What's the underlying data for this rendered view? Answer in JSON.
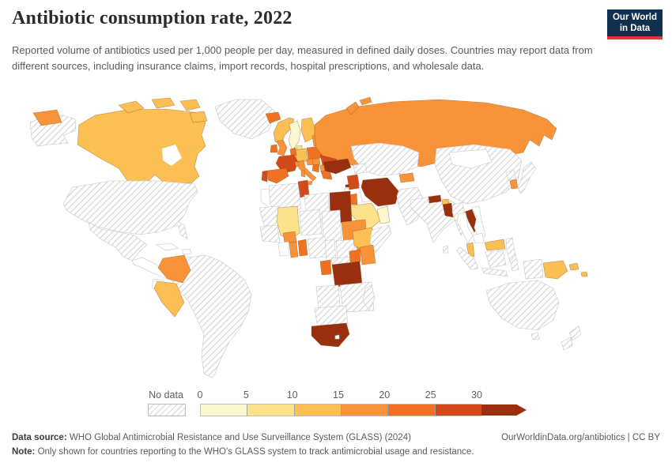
{
  "header": {
    "title": "Antibiotic consumption rate, 2022",
    "subtitle": "Reported volume of antibiotics used per 1,000 people per day, measured in defined daily doses. Countries may report data from different sources, including insurance claims, import records, hospital prescriptions, and wholesale data.",
    "logo": {
      "line1": "Our World",
      "line2": "in Data",
      "bg": "#10304e",
      "accent": "#dc382d"
    }
  },
  "legend": {
    "no_data_label": "No data",
    "ticks": [
      "0",
      "5",
      "10",
      "15",
      "20",
      "25",
      "30"
    ]
  },
  "footer": {
    "source_label": "Data source:",
    "source_text": " WHO Global Antimicrobial Resistance and Use Surveillance System (GLASS) (2024)",
    "attribution": "OurWorldinData.org/antibiotics | CC BY",
    "note_label": "Note:",
    "note_text": " Only shown for countries reporting to the WHO's GLASS system to track antimicrobial usage and resistance."
  },
  "map": {
    "bin_colors": [
      "#fdf7d1",
      "#fce28a",
      "#fcbf53",
      "#f8933a",
      "#ee7124",
      "#d2491b",
      "#9a2f10"
    ],
    "hatch_line_color": "#d7d7d7",
    "countries": [
      {
        "id": "alaska",
        "bin": "nodata"
      },
      {
        "id": "usa",
        "bin": "nodata"
      },
      {
        "id": "canada",
        "bin": 2
      },
      {
        "id": "hudson-bay",
        "bin": "sea"
      },
      {
        "id": "arctic-1",
        "bin": 2
      },
      {
        "id": "arctic-2",
        "bin": 2
      },
      {
        "id": "arctic-3",
        "bin": 2
      },
      {
        "id": "arctic-4",
        "bin": 2
      },
      {
        "id": "greenland",
        "bin": "nodata"
      },
      {
        "id": "iceland",
        "bin": 4
      },
      {
        "id": "mexico",
        "bin": "nodata"
      },
      {
        "id": "central-america",
        "bin": "white"
      },
      {
        "id": "cuba",
        "bin": "white"
      },
      {
        "id": "hispaniola",
        "bin": "white"
      },
      {
        "id": "south-america",
        "bin": "nodata"
      },
      {
        "id": "colombia",
        "bin": 3
      },
      {
        "id": "peru",
        "bin": 2
      },
      {
        "id": "ecuador",
        "bin": "white"
      },
      {
        "id": "norway",
        "bin": 2
      },
      {
        "id": "sweden",
        "bin": 0
      },
      {
        "id": "finland",
        "bin": 2
      },
      {
        "id": "denmark",
        "bin": 1
      },
      {
        "id": "uk",
        "bin": 3
      },
      {
        "id": "ireland",
        "bin": 4
      },
      {
        "id": "baltics",
        "bin": 3
      },
      {
        "id": "belarus",
        "bin": "nodata"
      },
      {
        "id": "poland",
        "bin": 4
      },
      {
        "id": "germany",
        "bin": 2
      },
      {
        "id": "benelux",
        "bin": 4
      },
      {
        "id": "france",
        "bin": 5
      },
      {
        "id": "spain",
        "bin": 4
      },
      {
        "id": "portugal",
        "bin": 5
      },
      {
        "id": "switzerland",
        "bin": 3
      },
      {
        "id": "czech-austria",
        "bin": 3
      },
      {
        "id": "italy",
        "bin": 3
      },
      {
        "id": "sicily",
        "bin": 3
      },
      {
        "id": "sardinia",
        "bin": 3
      },
      {
        "id": "hungary",
        "bin": 3
      },
      {
        "id": "romania",
        "bin": 5
      },
      {
        "id": "serbia",
        "bin": 4
      },
      {
        "id": "bulgaria",
        "bin": 3
      },
      {
        "id": "greece",
        "bin": 4
      },
      {
        "id": "ukraine",
        "bin": 1
      },
      {
        "id": "turkey",
        "bin": 6
      },
      {
        "id": "cyprus",
        "bin": 6
      },
      {
        "id": "syria",
        "bin": 5
      },
      {
        "id": "lebanon-israel",
        "bin": "white"
      },
      {
        "id": "jordan",
        "bin": 4
      },
      {
        "id": "iraq",
        "bin": "white"
      },
      {
        "id": "iran",
        "bin": 6
      },
      {
        "id": "saudi-arabia",
        "bin": 1
      },
      {
        "id": "oman-uae",
        "bin": 0
      },
      {
        "id": "yemen",
        "bin": "white"
      },
      {
        "id": "caucasus",
        "bin": "nodata"
      },
      {
        "id": "russia",
        "bin": 3
      },
      {
        "id": "chukotka",
        "bin": 3
      },
      {
        "id": "novaya-zemlya-1",
        "bin": 3
      },
      {
        "id": "novaya-zemlya-2",
        "bin": 3
      },
      {
        "id": "kazakhstan-central-asia",
        "bin": "nodata"
      },
      {
        "id": "kyrgyzstan-tajikistan",
        "bin": 3
      },
      {
        "id": "afghanistan-pakistan",
        "bin": "nodata"
      },
      {
        "id": "india",
        "bin": "nodata"
      },
      {
        "id": "sri-lanka",
        "bin": "nodata"
      },
      {
        "id": "nepal",
        "bin": 6
      },
      {
        "id": "bhutan",
        "bin": 2
      },
      {
        "id": "bangladesh",
        "bin": 6
      },
      {
        "id": "myanmar",
        "bin": "nodata"
      },
      {
        "id": "china",
        "bin": "nodata"
      },
      {
        "id": "mongolia",
        "bin": "white"
      },
      {
        "id": "north-korea",
        "bin": "nodata"
      },
      {
        "id": "south-korea",
        "bin": 3
      },
      {
        "id": "japan",
        "bin": "nodata"
      },
      {
        "id": "laos",
        "bin": 6
      },
      {
        "id": "thailand",
        "bin": "white"
      },
      {
        "id": "vietnam",
        "bin": "white"
      },
      {
        "id": "cambodia",
        "bin": "white"
      },
      {
        "id": "malaysia",
        "bin": 2
      },
      {
        "id": "malaysia-borneo",
        "bin": 2
      },
      {
        "id": "sumatra",
        "bin": "nodata"
      },
      {
        "id": "java",
        "bin": "nodata"
      },
      {
        "id": "borneo",
        "bin": "nodata"
      },
      {
        "id": "sulawesi",
        "bin": "nodata"
      },
      {
        "id": "west-new-guinea",
        "bin": "nodata"
      },
      {
        "id": "philippines",
        "bin": "nodata"
      },
      {
        "id": "papua-new-guinea",
        "bin": 2
      },
      {
        "id": "png-islands",
        "bin": 2
      },
      {
        "id": "solomon-islands",
        "bin": 2
      },
      {
        "id": "australia",
        "bin": "nodata"
      },
      {
        "id": "tasmania",
        "bin": "nodata"
      },
      {
        "id": "new-zealand-north",
        "bin": "nodata"
      },
      {
        "id": "new-zealand-south",
        "bin": "nodata"
      },
      {
        "id": "morocco",
        "bin": "white"
      },
      {
        "id": "algeria",
        "bin": "nodata"
      },
      {
        "id": "tunisia",
        "bin": 5
      },
      {
        "id": "libya",
        "bin": "nodata"
      },
      {
        "id": "egypt",
        "bin": 6
      },
      {
        "id": "wsahara-mauritania",
        "bin": "nodata"
      },
      {
        "id": "mali",
        "bin": 1
      },
      {
        "id": "niger",
        "bin": "nodata"
      },
      {
        "id": "chad",
        "bin": "nodata"
      },
      {
        "id": "sudan",
        "bin": 3
      },
      {
        "id": "senegal-guinea",
        "bin": "nodata"
      },
      {
        "id": "burkina-faso",
        "bin": 3
      },
      {
        "id": "ivory-coast",
        "bin": "white"
      },
      {
        "id": "ghana",
        "bin": 3
      },
      {
        "id": "togo-benin",
        "bin": 4
      },
      {
        "id": "nigeria",
        "bin": "nodata"
      },
      {
        "id": "cameroon",
        "bin": "nodata"
      },
      {
        "id": "car-south-sudan",
        "bin": "nodata"
      },
      {
        "id": "ethiopia",
        "bin": 2
      },
      {
        "id": "somalia",
        "bin": "nodata"
      },
      {
        "id": "gabon-congo",
        "bin": 4
      },
      {
        "id": "drc",
        "bin": "nodata"
      },
      {
        "id": "uganda",
        "bin": 4
      },
      {
        "id": "kenya",
        "bin": 3
      },
      {
        "id": "rwanda",
        "bin": 0
      },
      {
        "id": "tanzania",
        "bin": 6
      },
      {
        "id": "angola",
        "bin": "nodata"
      },
      {
        "id": "zambia-mozambique",
        "bin": "nodata"
      },
      {
        "id": "namibia-botswana",
        "bin": "nodata"
      },
      {
        "id": "south-africa",
        "bin": 6
      },
      {
        "id": "lesotho",
        "bin": "white"
      },
      {
        "id": "madagascar",
        "bin": "nodata"
      }
    ]
  },
  "chart_data": {
    "type": "choropleth",
    "title": "Antibiotic consumption rate, 2022",
    "unit": "defined daily doses of antibiotics per 1,000 people per day",
    "legend_position": "bottom",
    "bins": [
      {
        "range": "0-5",
        "color": "#fdf7d1"
      },
      {
        "range": "5-10",
        "color": "#fce28a"
      },
      {
        "range": "10-15",
        "color": "#fcbf53"
      },
      {
        "range": "15-20",
        "color": "#f8933a"
      },
      {
        "range": "20-25",
        "color": "#ee7124"
      },
      {
        "range": "25-30",
        "color": "#d2491b"
      },
      {
        "range": "30+",
        "color": "#9a2f10"
      }
    ],
    "values": {
      "Canada": "10-15",
      "Iceland": "20-25",
      "Russia": "15-20",
      "Colombia": "15-20",
      "Peru": "10-15",
      "Norway": "10-15",
      "Sweden": "0-5",
      "Finland": "10-15",
      "Denmark": "5-10",
      "United Kingdom": "15-20",
      "Ireland": "20-25",
      "France": "25-30",
      "Spain": "20-25",
      "Portugal": "25-30",
      "Germany": "10-15",
      "Benelux": "20-25",
      "Poland": "20-25",
      "Czechia/Austria": "15-20",
      "Switzerland": "15-20",
      "Italy": "15-20",
      "Hungary": "15-20",
      "Romania": "25-30",
      "Serbia": "20-25",
      "Bulgaria": "15-20",
      "Greece": "20-25",
      "Ukraine": "5-10",
      "Baltic states": "15-20",
      "Turkey": "30+",
      "Cyprus": "30+",
      "Syria": "25-30",
      "Jordan": "20-25",
      "Iran": "30+",
      "Saudi Arabia": "5-10",
      "Oman/UAE": "0-5",
      "Kyrgyzstan/Tajikistan": "15-20",
      "Nepal": "30+",
      "Bhutan": "10-15",
      "Bangladesh": "30+",
      "Laos": "30+",
      "Malaysia": "10-15",
      "South Korea": "15-20",
      "Papua New Guinea": "10-15",
      "Tunisia": "25-30",
      "Egypt": "30+",
      "Sudan": "15-20",
      "Mali": "5-10",
      "Burkina Faso": "15-20",
      "Ghana": "15-20",
      "Togo/Benin": "20-25",
      "Gabon": "20-25",
      "Ethiopia": "10-15",
      "Uganda": "20-25",
      "Kenya": "15-20",
      "Rwanda": "0-5",
      "Tanzania": "30+",
      "South Africa": "30+"
    },
    "no_data_countries": [
      "United States",
      "Greenland",
      "Mexico",
      "Brazil",
      "Argentina",
      "Chile",
      "Bolivia",
      "Venezuela",
      "Algeria",
      "Libya",
      "Niger",
      "Chad",
      "Nigeria",
      "DR Congo",
      "Angola",
      "Zambia",
      "Mozambique",
      "Namibia",
      "Botswana",
      "Madagascar",
      "Somalia",
      "Kazakhstan",
      "Uzbekistan",
      "Turkmenistan",
      "Afghanistan",
      "Pakistan",
      "India",
      "China",
      "Myanmar",
      "Indonesia",
      "Philippines",
      "Japan",
      "North Korea",
      "Australia",
      "New Zealand",
      "Belarus"
    ]
  }
}
